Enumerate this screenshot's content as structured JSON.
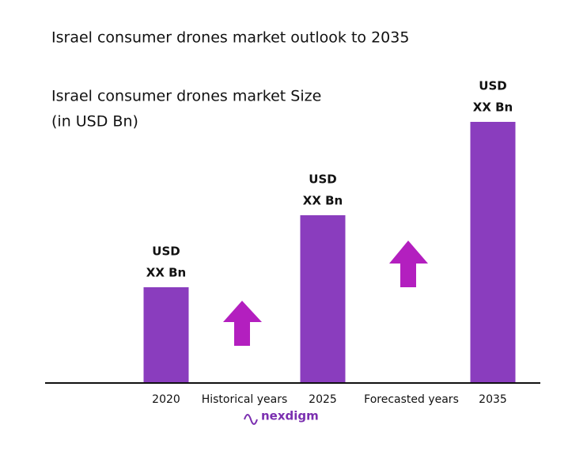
{
  "chart_data": {
    "type": "bar",
    "title": "Israel consumer drones market outlook to 2035",
    "subtitle": [
      "Israel consumer drones market Size",
      "(in USD Bn)"
    ],
    "categories": [
      "2020",
      "2025",
      "2035"
    ],
    "values": [
      120,
      211,
      329
    ],
    "value_labels": [
      [
        "USD",
        "XX Bn"
      ],
      [
        "USD",
        "XX Bn"
      ],
      [
        "USD",
        "XX Bn"
      ]
    ],
    "color": "#8a3dbe",
    "annotations": [
      "Historical years",
      "Forecasted years"
    ],
    "logo": "nexdigm"
  }
}
